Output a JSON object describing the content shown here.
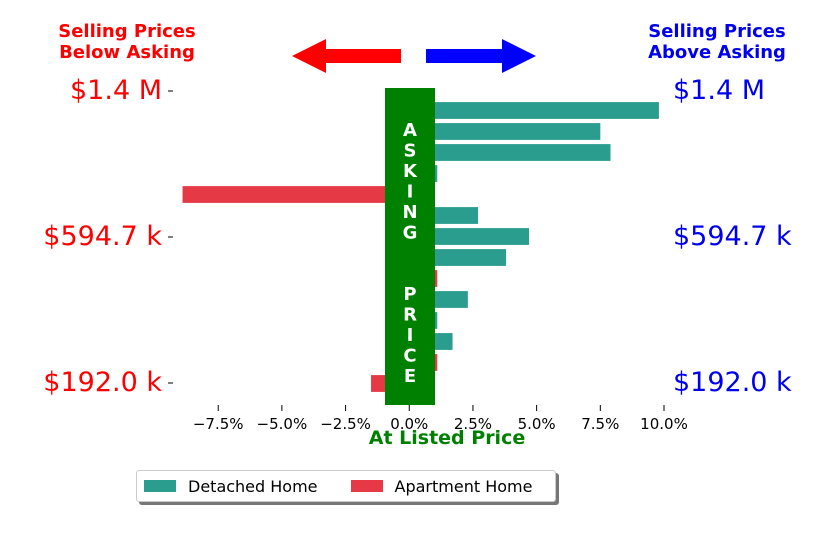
{
  "header": {
    "left_title_line1": "Selling Prices",
    "left_title_line2": "Below Asking",
    "right_title_line1": "Selling Prices",
    "right_title_line2": "Above Asking",
    "left_color": "#ff0000",
    "right_color": "#0000ee"
  },
  "price_labels": {
    "top": "$1.4 M",
    "mid": "$594.7 k",
    "bottom": "$192.0 k"
  },
  "asking_price_label": "ASKING  PRICE",
  "axis_title": "At Listed Price",
  "legend": {
    "detached_label": "Detached Home",
    "apartment_label": "Apartment Home"
  },
  "colors": {
    "detached": "#2a9d8f",
    "apartment": "#e63946",
    "asking_band": "#008000",
    "left_arrow": "#ff0000",
    "right_arrow": "#0000ff"
  },
  "chart_data": {
    "type": "bar",
    "orientation": "horizontal",
    "xlabel": "At Listed Price",
    "xlim": [
      -9.0,
      10.0
    ],
    "x_ticks": [
      -7.5,
      -5.0,
      -2.5,
      0.0,
      2.5,
      5.0,
      7.5,
      10.0
    ],
    "x_tick_labels": [
      "−7.5%",
      "−5.0%",
      "−2.5%",
      "0.0%",
      "2.5%",
      "5.0%",
      "7.5%",
      "10.0%"
    ],
    "bars": [
      {
        "type": "Detached Home",
        "value": 9.8
      },
      {
        "type": "Detached Home",
        "value": 7.5
      },
      {
        "type": "Detached Home",
        "value": 7.9
      },
      {
        "type": "Detached Home",
        "value": 1.1
      },
      {
        "type": "Apartment Home",
        "value": -8.9
      },
      {
        "type": "Detached Home",
        "value": 2.7
      },
      {
        "type": "Detached Home",
        "value": 4.7
      },
      {
        "type": "Detached Home",
        "value": 3.8
      },
      {
        "type": "Apartment Home",
        "value": 1.1
      },
      {
        "type": "Detached Home",
        "value": 2.3
      },
      {
        "type": "Detached Home",
        "value": 1.1
      },
      {
        "type": "Detached Home",
        "value": 1.7
      },
      {
        "type": "Apartment Home",
        "value": 1.1
      },
      {
        "type": "Apartment Home",
        "value": -1.5
      }
    ],
    "legend_placement": "bottom",
    "grid": false
  }
}
